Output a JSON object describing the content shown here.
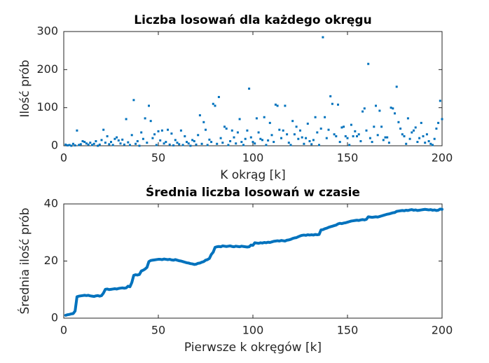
{
  "chart_data": [
    {
      "type": "scatter",
      "title": "Liczba losowań dla każdego okręgu",
      "xlabel": "K okrąg [k]",
      "ylabel": "Ilość prób",
      "color": "#0072bd",
      "xlim": [
        0,
        200
      ],
      "xticks": [
        0,
        50,
        100,
        150,
        200
      ],
      "ylim": [
        0,
        300
      ],
      "yticks": [
        0,
        100,
        200,
        300
      ],
      "x": [
        1,
        2,
        3,
        4,
        5,
        6,
        7,
        8,
        9,
        10,
        11,
        12,
        13,
        14,
        15,
        16,
        17,
        18,
        19,
        20,
        21,
        22,
        23,
        24,
        25,
        26,
        27,
        28,
        29,
        30,
        31,
        32,
        33,
        34,
        35,
        36,
        37,
        38,
        39,
        40,
        41,
        42,
        43,
        44,
        45,
        46,
        47,
        48,
        49,
        50,
        51,
        52,
        53,
        54,
        55,
        56,
        57,
        58,
        59,
        60,
        61,
        62,
        63,
        64,
        65,
        66,
        67,
        68,
        69,
        70,
        71,
        72,
        73,
        74,
        75,
        76,
        77,
        78,
        79,
        80,
        81,
        82,
        83,
        84,
        85,
        86,
        87,
        88,
        89,
        90,
        91,
        92,
        93,
        94,
        95,
        96,
        97,
        98,
        99,
        100,
        101,
        102,
        103,
        104,
        105,
        106,
        107,
        108,
        109,
        110,
        111,
        112,
        113,
        114,
        115,
        116,
        117,
        118,
        119,
        120,
        121,
        122,
        123,
        124,
        125,
        126,
        127,
        128,
        129,
        130,
        131,
        132,
        133,
        134,
        135,
        136,
        137,
        138,
        139,
        140,
        141,
        142,
        143,
        144,
        145,
        146,
        147,
        148,
        149,
        150,
        151,
        152,
        153,
        154,
        155,
        156,
        157,
        158,
        159,
        160,
        161,
        162,
        163,
        164,
        165,
        166,
        167,
        168,
        169,
        170,
        171,
        172,
        173,
        174,
        175,
        176,
        177,
        178,
        179,
        180,
        181,
        182,
        183,
        184,
        185,
        186,
        187,
        188,
        189,
        190,
        191,
        192,
        193,
        194,
        195,
        196,
        197,
        198,
        199,
        200
      ],
      "values": [
        3,
        1,
        2,
        0,
        5,
        1,
        40,
        2,
        4,
        12,
        10,
        6,
        3,
        8,
        2,
        5,
        12,
        0,
        3,
        15,
        42,
        8,
        25,
        4,
        10,
        2,
        18,
        22,
        14,
        6,
        16,
        3,
        70,
        9,
        2,
        28,
        120,
        5,
        12,
        0,
        35,
        18,
        72,
        8,
        105,
        65,
        20,
        30,
        2,
        38,
        14,
        40,
        6,
        10,
        42,
        3,
        32,
        1,
        15,
        8,
        4,
        40,
        2,
        25,
        10,
        6,
        0,
        15,
        12,
        3,
        28,
        80,
        5,
        62,
        42,
        2,
        16,
        10,
        110,
        105,
        5,
        128,
        20,
        8,
        50,
        45,
        2,
        12,
        40,
        22,
        6,
        35,
        70,
        10,
        2,
        18,
        40,
        150,
        22,
        10,
        6,
        72,
        35,
        18,
        15,
        75,
        2,
        14,
        60,
        28,
        10,
        108,
        105,
        42,
        20,
        40,
        105,
        30,
        8,
        2,
        65,
        30,
        50,
        18,
        40,
        22,
        5,
        20,
        58,
        12,
        4,
        15,
        75,
        35,
        2,
        45,
        285,
        75,
        20,
        42,
        130,
        110,
        30,
        25,
        108,
        10,
        48,
        50,
        25,
        20,
        2,
        55,
        25,
        38,
        25,
        30,
        12,
        90,
        98,
        40,
        215,
        20,
        10,
        50,
        105,
        28,
        92,
        50,
        15,
        22,
        22,
        8,
        100,
        98,
        85,
        155,
        62,
        45,
        30,
        25,
        5,
        72,
        18,
        35,
        40,
        48,
        10,
        20,
        60,
        25,
        8,
        30,
        12,
        5,
        2,
        18,
        45,
        60,
        118,
        70
      ]
    },
    {
      "type": "line",
      "title": "Średnia liczba losowań w czasie",
      "xlabel": "Pierwsze k okręgów [k]",
      "ylabel": "Średnia ilość prób",
      "color": "#0072bd",
      "xlim": [
        0,
        200
      ],
      "xticks": [
        0,
        50,
        100,
        150,
        200
      ],
      "ylim": [
        0,
        40
      ],
      "yticks": [
        0,
        20,
        40
      ],
      "x": [
        1,
        2,
        3,
        4,
        5,
        6,
        7,
        8,
        9,
        10,
        11,
        12,
        13,
        14,
        15,
        16,
        17,
        18,
        19,
        20,
        21,
        22,
        23,
        24,
        25,
        26,
        27,
        28,
        29,
        30,
        31,
        32,
        33,
        34,
        35,
        36,
        37,
        38,
        39,
        40,
        41,
        42,
        43,
        44,
        45,
        46,
        47,
        48,
        49,
        50,
        51,
        52,
        53,
        54,
        55,
        56,
        57,
        58,
        59,
        60,
        61,
        62,
        63,
        64,
        65,
        66,
        67,
        68,
        69,
        70,
        71,
        72,
        73,
        74,
        75,
        76,
        77,
        78,
        79,
        80,
        81,
        82,
        83,
        84,
        85,
        86,
        87,
        88,
        89,
        90,
        91,
        92,
        93,
        94,
        95,
        96,
        97,
        98,
        99,
        100,
        101,
        102,
        103,
        104,
        105,
        106,
        107,
        108,
        109,
        110,
        111,
        112,
        113,
        114,
        115,
        116,
        117,
        118,
        119,
        120,
        121,
        122,
        123,
        124,
        125,
        126,
        127,
        128,
        129,
        130,
        131,
        132,
        133,
        134,
        135,
        136,
        137,
        138,
        139,
        140,
        141,
        142,
        143,
        144,
        145,
        146,
        147,
        148,
        149,
        150,
        151,
        152,
        153,
        154,
        155,
        156,
        157,
        158,
        159,
        160,
        161,
        162,
        163,
        164,
        165,
        166,
        167,
        168,
        169,
        170,
        171,
        172,
        173,
        174,
        175,
        176,
        177,
        178,
        179,
        180,
        181,
        182,
        183,
        184,
        185,
        186,
        187,
        188,
        189,
        190,
        191,
        192,
        193,
        194,
        195,
        196,
        197,
        198,
        199,
        200
      ],
      "values": [
        1.0,
        1.2,
        1.3,
        1.5,
        1.6,
        2.5,
        7.5,
        7.7,
        7.8,
        7.9,
        8.0,
        7.9,
        8.0,
        7.8,
        7.7,
        7.6,
        7.8,
        7.9,
        7.7,
        7.9,
        8.8,
        10.1,
        10.2,
        10.0,
        10.1,
        10.2,
        10.3,
        10.2,
        10.4,
        10.5,
        10.6,
        10.5,
        10.6,
        11.2,
        11.0,
        12.5,
        15.0,
        15.2,
        15.1,
        15.3,
        16.5,
        16.8,
        17.2,
        17.8,
        19.8,
        20.2,
        20.3,
        20.4,
        20.5,
        20.6,
        20.6,
        20.5,
        20.7,
        20.6,
        20.5,
        20.6,
        20.4,
        20.3,
        20.5,
        20.3,
        20.1,
        20.0,
        19.8,
        19.6,
        19.4,
        19.3,
        19.1,
        19.0,
        18.8,
        18.9,
        19.2,
        19.3,
        19.6,
        19.8,
        20.3,
        20.5,
        20.9,
        22.3,
        23.1,
        24.8,
        25.0,
        25.1,
        25.0,
        25.3,
        25.2,
        25.1,
        25.2,
        25.3,
        25.1,
        25.0,
        25.2,
        25.1,
        25.0,
        25.2,
        25.1,
        25.0,
        24.9,
        25.0,
        25.6,
        25.5,
        26.4,
        26.3,
        26.2,
        26.4,
        26.3,
        26.5,
        26.4,
        26.6,
        26.5,
        26.7,
        26.9,
        27.0,
        27.1,
        27.0,
        27.2,
        27.1,
        27.0,
        27.3,
        27.4,
        27.6,
        27.9,
        28.1,
        28.2,
        28.5,
        28.8,
        29.0,
        29.1,
        29.0,
        29.2,
        29.1,
        29.2,
        29.1,
        29.3,
        29.2,
        29.3,
        30.9,
        31.0,
        31.3,
        31.5,
        31.8,
        32.0,
        32.2,
        32.4,
        32.6,
        33.0,
        33.2,
        33.1,
        33.3,
        33.4,
        33.6,
        33.8,
        34.0,
        34.1,
        34.2,
        34.3,
        34.2,
        34.4,
        34.5,
        34.4,
        34.6,
        35.5,
        35.4,
        35.3,
        35.4,
        35.5,
        35.4,
        35.6,
        35.8,
        36.0,
        36.2,
        36.4,
        36.5,
        36.7,
        36.9,
        37.0,
        37.4,
        37.5,
        37.6,
        37.7,
        37.6,
        37.8,
        37.7,
        37.9,
        38.0,
        37.8,
        37.9,
        37.7,
        37.8,
        37.9,
        38.0,
        38.1,
        38.0,
        37.9,
        38.0,
        37.8,
        37.9,
        37.7,
        37.8,
        38.2,
        38.1
      ]
    }
  ]
}
